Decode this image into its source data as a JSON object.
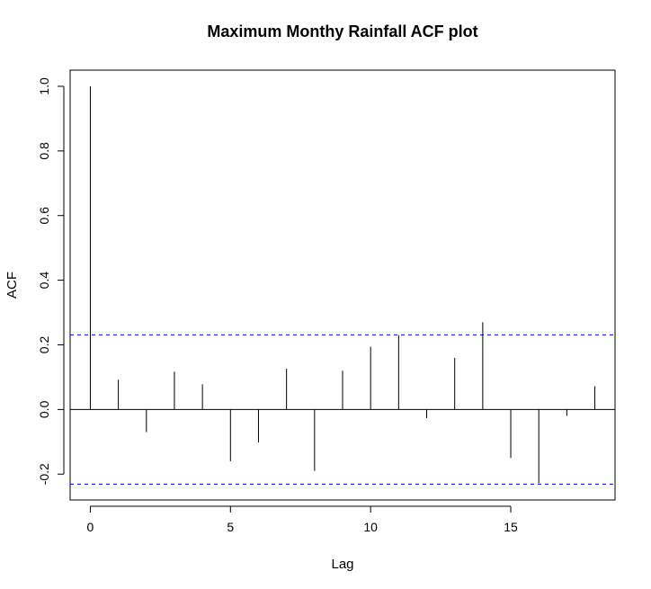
{
  "chart_data": {
    "type": "bar",
    "title": "Maximum Monthy Rainfall ACF plot",
    "xlabel": "Lag",
    "ylabel": "ACF",
    "xlim": [
      -0.72,
      18.72
    ],
    "ylim": [
      -0.28,
      1.05
    ],
    "xticks": [
      0,
      5,
      10,
      15
    ],
    "yticks": [
      -0.2,
      0.0,
      0.2,
      0.4,
      0.6,
      0.8,
      1.0
    ],
    "ytick_labels": [
      "-0.2",
      "0.0",
      "0.2",
      "0.4",
      "0.6",
      "0.8",
      "1.0"
    ],
    "lags": [
      0,
      1,
      2,
      3,
      4,
      5,
      6,
      7,
      8,
      9,
      10,
      11,
      12,
      13,
      14,
      15,
      16,
      17,
      18
    ],
    "acf": [
      1.0,
      0.092,
      -0.07,
      0.117,
      0.078,
      -0.16,
      -0.102,
      0.126,
      -0.19,
      0.12,
      0.194,
      0.23,
      -0.027,
      0.16,
      0.27,
      -0.15,
      -0.228,
      -0.02,
      0.072
    ],
    "confidence_bound": 0.231,
    "confidence_color": "#0000ff",
    "line_color": "#000000",
    "grid": false
  }
}
